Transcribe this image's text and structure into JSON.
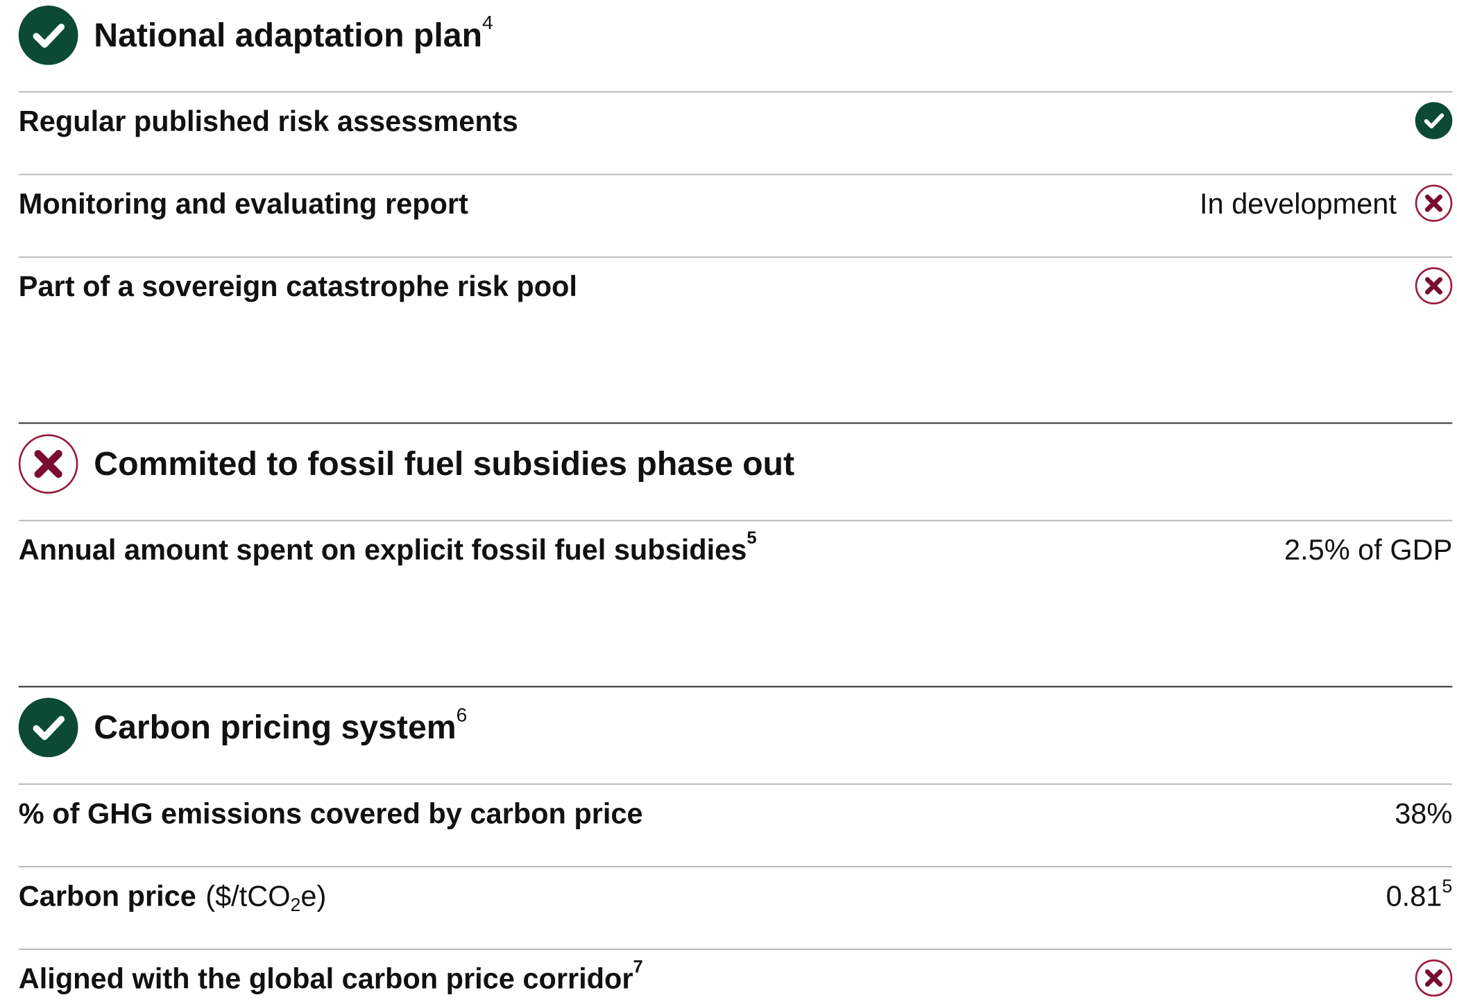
{
  "sections": [
    {
      "title": "National adaptation plan",
      "footnote": "4",
      "status": "yes",
      "rows": [
        {
          "label": "Regular published risk assessments",
          "status": "yes"
        },
        {
          "label": "Monitoring and evaluating report",
          "value": "In development",
          "status": "no"
        },
        {
          "label": "Part of a sovereign catastrophe risk pool",
          "status": "no"
        }
      ]
    },
    {
      "title": "Commited to fossil fuel subsidies phase out",
      "status": "no",
      "rows": [
        {
          "label": "Annual amount spent on explicit fossil fuel subsidies",
          "footnote": "5",
          "value": "2.5% of GDP"
        }
      ]
    },
    {
      "title": "Carbon pricing system",
      "footnote": "6",
      "status": "yes",
      "rows": [
        {
          "label": "% of GHG emissions covered by carbon price",
          "value": "38%"
        },
        {
          "label": "Carbon price",
          "unit": {
            "before": "($/tCO",
            "subscript": "2",
            "after": "e)"
          },
          "value": "0.81",
          "value_footnote": "5"
        },
        {
          "label": "Aligned with the global carbon price corridor",
          "footnote": "7",
          "status": "no"
        }
      ]
    }
  ]
}
